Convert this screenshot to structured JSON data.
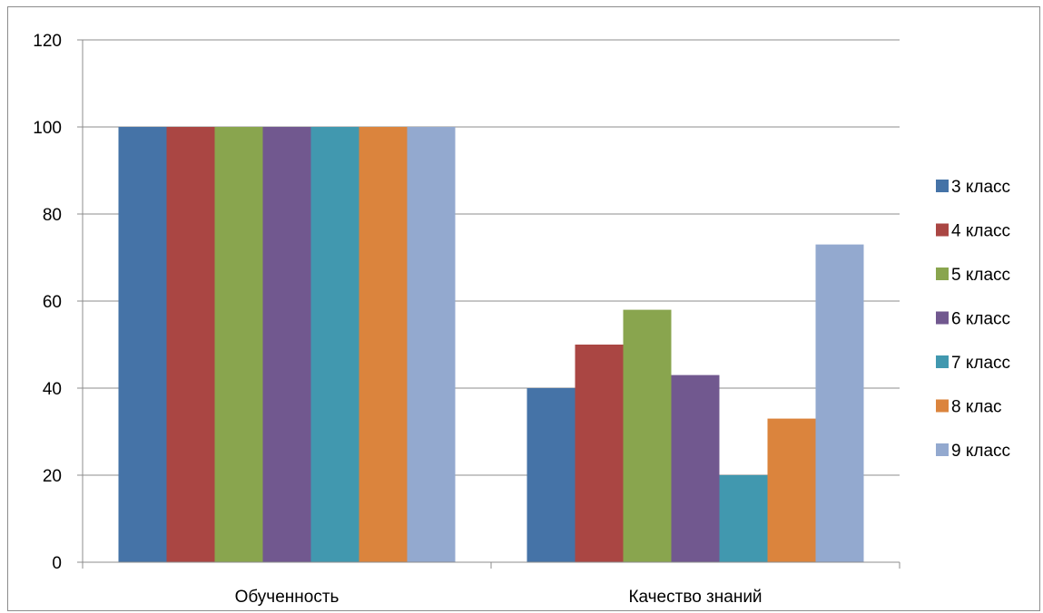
{
  "chart_data": {
    "type": "bar",
    "categories": [
      "Обученность",
      "Качество знаний"
    ],
    "series": [
      {
        "name": "3 класс",
        "color": "#4573a7",
        "values": [
          100,
          40
        ]
      },
      {
        "name": "4 класс",
        "color": "#aa4643",
        "values": [
          100,
          50
        ]
      },
      {
        "name": "5 класс",
        "color": "#89a54e",
        "values": [
          100,
          58
        ]
      },
      {
        "name": "6 класс",
        "color": "#71588f",
        "values": [
          100,
          43
        ]
      },
      {
        "name": "7 класс",
        "color": "#4198af",
        "values": [
          100,
          20
        ]
      },
      {
        "name": "8 клас",
        "color": "#db843d",
        "values": [
          100,
          33
        ]
      },
      {
        "name": "9 класс",
        "color": "#93a9cf",
        "values": [
          100,
          73
        ]
      }
    ],
    "ylim": [
      0,
      120
    ],
    "yticks": [
      "0",
      "20",
      "40",
      "60",
      "80",
      "100",
      "120"
    ],
    "grid": true,
    "legend_position": "right"
  }
}
